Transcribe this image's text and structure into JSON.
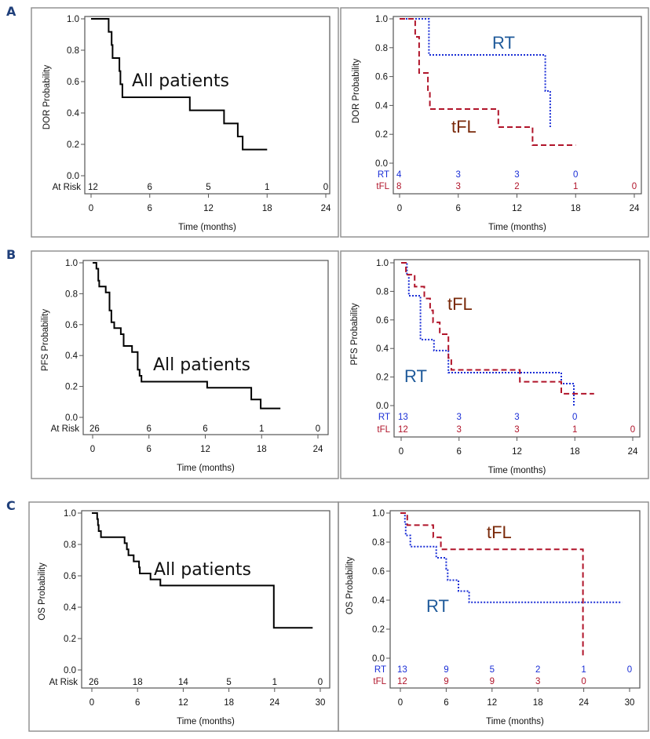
{
  "figure": {
    "panel_letters": [
      "A",
      "B",
      "C"
    ],
    "colors": {
      "all": "#000000",
      "RT": "#1a2ed6",
      "tFL": "#b0142a",
      "RT_annotation": "#1f5a9a",
      "tFL_annotation": "#7a2a0a",
      "letter": "#1f3f7a"
    }
  },
  "chart_data": [
    {
      "id": "A-left",
      "panel": "A",
      "type": "line",
      "title": "",
      "xlabel": "Time (months)",
      "ylabel": "DOR Probability",
      "xlim": [
        0,
        24
      ],
      "ylim": [
        0,
        1
      ],
      "xticks": [
        0,
        6,
        12,
        18,
        24
      ],
      "yticks": [
        "0.0",
        "0.2",
        "0.4",
        "0.6",
        "0.8",
        "1.0"
      ],
      "annotations": [
        {
          "text": "All patients",
          "series": "all"
        }
      ],
      "risk_table": [
        {
          "label": "At Risk",
          "series": "all",
          "values": [
            "12",
            "6",
            "5",
            "1",
            "0"
          ]
        }
      ],
      "series": [
        {
          "name": "All patients",
          "key": "all",
          "style": "solid",
          "steps": [
            [
              0,
              1.0
            ],
            [
              1.8,
              0.917
            ],
            [
              2.1,
              0.833
            ],
            [
              2.2,
              0.75
            ],
            [
              2.9,
              0.667
            ],
            [
              3.0,
              0.583
            ],
            [
              3.2,
              0.5
            ],
            [
              10.1,
              0.417
            ],
            [
              13.6,
              0.333
            ],
            [
              15.0,
              0.25
            ],
            [
              15.5,
              0.167
            ],
            [
              18.0,
              0.167
            ]
          ]
        }
      ]
    },
    {
      "id": "A-right",
      "panel": "A",
      "type": "line",
      "title": "",
      "xlabel": "Time (months)",
      "ylabel": "DOR Probability",
      "xlim": [
        0,
        24
      ],
      "ylim": [
        0,
        1
      ],
      "xticks": [
        0,
        6,
        12,
        18,
        24
      ],
      "yticks": [
        "0.0",
        "0.2",
        "0.4",
        "0.6",
        "0.8",
        "1.0"
      ],
      "annotations": [
        {
          "text": "RT",
          "series": "RT"
        },
        {
          "text": "tFL",
          "series": "tFL"
        }
      ],
      "risk_table": [
        {
          "label": "RT",
          "series": "RT",
          "values": [
            "4",
            "3",
            "3",
            "0",
            ""
          ]
        },
        {
          "label": "tFL",
          "series": "tFL",
          "values": [
            "8",
            "3",
            "2",
            "1",
            "0"
          ]
        }
      ],
      "series": [
        {
          "name": "RT",
          "key": "RT",
          "style": "dotted",
          "steps": [
            [
              0,
              1.0
            ],
            [
              3.0,
              0.75
            ],
            [
              14.9,
              0.5
            ],
            [
              15.4,
              0.25
            ],
            [
              15.4,
              0.25
            ]
          ]
        },
        {
          "name": "tFL",
          "key": "tFL",
          "style": "dashed",
          "steps": [
            [
              0,
              1.0
            ],
            [
              1.6,
              0.875
            ],
            [
              2.0,
              0.625
            ],
            [
              2.9,
              0.5
            ],
            [
              3.1,
              0.375
            ],
            [
              10.1,
              0.25
            ],
            [
              13.6,
              0.125
            ],
            [
              18.0,
              0.125
            ]
          ]
        }
      ]
    },
    {
      "id": "B-left",
      "panel": "B",
      "type": "line",
      "title": "",
      "xlabel": "Time (months)",
      "ylabel": "PFS Probability",
      "xlim": [
        0,
        24
      ],
      "ylim": [
        0,
        1
      ],
      "xticks": [
        0,
        6,
        12,
        18,
        24
      ],
      "yticks": [
        "0.0",
        "0.2",
        "0.4",
        "0.6",
        "0.8",
        "1.0"
      ],
      "annotations": [
        {
          "text": "All patients",
          "series": "all"
        }
      ],
      "risk_table": [
        {
          "label": "At Risk",
          "series": "all",
          "values": [
            "26",
            "6",
            "6",
            "1",
            "0"
          ]
        }
      ],
      "series": [
        {
          "name": "All patients",
          "key": "all",
          "style": "solid",
          "steps": [
            [
              0,
              1.0
            ],
            [
              0.4,
              0.962
            ],
            [
              0.6,
              0.885
            ],
            [
              0.7,
              0.846
            ],
            [
              1.4,
              0.808
            ],
            [
              1.8,
              0.692
            ],
            [
              2.0,
              0.615
            ],
            [
              2.3,
              0.577
            ],
            [
              3.0,
              0.538
            ],
            [
              3.3,
              0.462
            ],
            [
              4.2,
              0.423
            ],
            [
              4.8,
              0.308
            ],
            [
              5.0,
              0.269
            ],
            [
              5.2,
              0.231
            ],
            [
              12.2,
              0.192
            ],
            [
              16.9,
              0.115
            ],
            [
              17.9,
              0.058
            ],
            [
              20.0,
              0.058
            ]
          ]
        }
      ]
    },
    {
      "id": "B-right",
      "panel": "B",
      "type": "line",
      "title": "",
      "xlabel": "Time (months)",
      "ylabel": "PFS Probability",
      "xlim": [
        0,
        24
      ],
      "ylim": [
        0,
        1
      ],
      "xticks": [
        0,
        6,
        12,
        18,
        24
      ],
      "yticks": [
        "0.0",
        "0.2",
        "0.4",
        "0.6",
        "0.8",
        "1.0"
      ],
      "annotations": [
        {
          "text": "tFL",
          "series": "tFL"
        },
        {
          "text": "RT",
          "series": "RT"
        }
      ],
      "risk_table": [
        {
          "label": "RT",
          "series": "RT",
          "values": [
            "13",
            "3",
            "3",
            "0",
            ""
          ]
        },
        {
          "label": "tFL",
          "series": "tFL",
          "values": [
            "12",
            "3",
            "3",
            "1",
            "0"
          ]
        }
      ],
      "series": [
        {
          "name": "RT",
          "key": "RT",
          "style": "dotted",
          "steps": [
            [
              0,
              1.0
            ],
            [
              0.6,
              0.923
            ],
            [
              0.8,
              0.769
            ],
            [
              2.0,
              0.462
            ],
            [
              3.4,
              0.385
            ],
            [
              4.9,
              0.231
            ],
            [
              16.6,
              0.154
            ],
            [
              17.9,
              0.0
            ],
            [
              17.9,
              0.0
            ]
          ]
        },
        {
          "name": "tFL",
          "key": "tFL",
          "style": "dashed",
          "steps": [
            [
              0,
              1.0
            ],
            [
              0.5,
              0.917
            ],
            [
              1.4,
              0.833
            ],
            [
              2.4,
              0.75
            ],
            [
              3.0,
              0.667
            ],
            [
              3.3,
              0.583
            ],
            [
              4.0,
              0.5
            ],
            [
              4.9,
              0.333
            ],
            [
              5.2,
              0.25
            ],
            [
              12.3,
              0.167
            ],
            [
              16.6,
              0.083
            ],
            [
              20.0,
              0.083
            ]
          ]
        }
      ]
    },
    {
      "id": "C-left",
      "panel": "C",
      "type": "line",
      "title": "",
      "xlabel": "Time (months)",
      "ylabel": "OS Probability",
      "xlim": [
        0,
        30
      ],
      "ylim": [
        0,
        1
      ],
      "xticks": [
        0,
        6,
        12,
        18,
        24,
        30
      ],
      "yticks": [
        "0.0",
        "0.2",
        "0.4",
        "0.6",
        "0.8",
        "1.0"
      ],
      "annotations": [
        {
          "text": "All patients",
          "series": "all"
        }
      ],
      "risk_table": [
        {
          "label": "At Risk",
          "series": "all",
          "values": [
            "26",
            "18",
            "14",
            "5",
            "1",
            "0"
          ]
        }
      ],
      "series": [
        {
          "name": "All patients",
          "key": "all",
          "style": "solid",
          "steps": [
            [
              0,
              1.0
            ],
            [
              0.7,
              0.962
            ],
            [
              0.8,
              0.923
            ],
            [
              0.9,
              0.885
            ],
            [
              1.2,
              0.846
            ],
            [
              4.3,
              0.808
            ],
            [
              4.6,
              0.769
            ],
            [
              4.8,
              0.731
            ],
            [
              5.5,
              0.692
            ],
            [
              6.2,
              0.654
            ],
            [
              6.3,
              0.615
            ],
            [
              7.7,
              0.577
            ],
            [
              9.0,
              0.538
            ],
            [
              23.9,
              0.269
            ],
            [
              29.0,
              0.269
            ]
          ]
        }
      ]
    },
    {
      "id": "C-right",
      "panel": "C",
      "type": "line",
      "title": "",
      "xlabel": "Time (months)",
      "ylabel": "OS Probability",
      "xlim": [
        0,
        30
      ],
      "ylim": [
        0,
        1
      ],
      "xticks": [
        0,
        6,
        12,
        18,
        24,
        30
      ],
      "yticks": [
        "0.0",
        "0.2",
        "0.4",
        "0.6",
        "0.8",
        "1.0"
      ],
      "annotations": [
        {
          "text": "tFL",
          "series": "tFL"
        },
        {
          "text": "RT",
          "series": "RT"
        }
      ],
      "risk_table": [
        {
          "label": "RT",
          "series": "RT",
          "values": [
            "13",
            "9",
            "5",
            "2",
            "1",
            "0"
          ]
        },
        {
          "label": "tFL",
          "series": "tFL",
          "values": [
            "12",
            "9",
            "9",
            "3",
            "0",
            ""
          ]
        }
      ],
      "series": [
        {
          "name": "RT",
          "key": "RT",
          "style": "dotted",
          "steps": [
            [
              0,
              1.0
            ],
            [
              0.6,
              0.923
            ],
            [
              0.7,
              0.846
            ],
            [
              1.3,
              0.769
            ],
            [
              4.7,
              0.692
            ],
            [
              6.0,
              0.615
            ],
            [
              6.2,
              0.538
            ],
            [
              7.6,
              0.462
            ],
            [
              9.0,
              0.385
            ],
            [
              29.0,
              0.385
            ]
          ]
        },
        {
          "name": "tFL",
          "key": "tFL",
          "style": "dashed",
          "steps": [
            [
              0,
              1.0
            ],
            [
              0.9,
              0.917
            ],
            [
              4.3,
              0.833
            ],
            [
              5.3,
              0.75
            ],
            [
              23.9,
              0.0
            ],
            [
              23.9,
              0.0
            ]
          ]
        }
      ]
    }
  ]
}
